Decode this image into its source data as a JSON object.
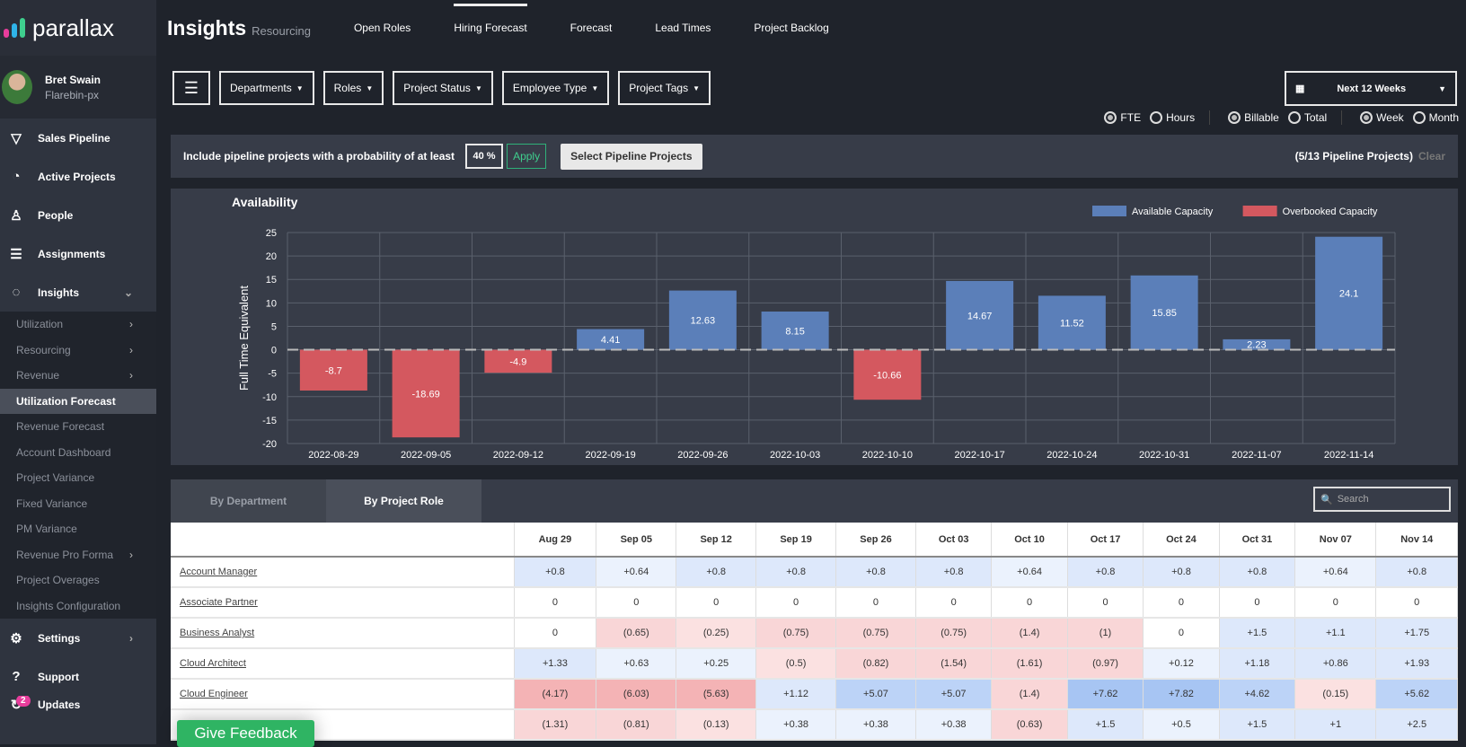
{
  "app": {
    "logo": "parallax"
  },
  "user": {
    "name": "Bret Swain",
    "org": "Flarebin-px"
  },
  "sidebar": {
    "items": [
      {
        "label": "Sales Pipeline",
        "icon": "funnel-icon"
      },
      {
        "label": "Active Projects",
        "icon": "pie-icon"
      },
      {
        "label": "People",
        "icon": "person-icon"
      },
      {
        "label": "Assignments",
        "icon": "bars-icon"
      },
      {
        "label": "Insights",
        "icon": "circle-icon"
      }
    ],
    "sub": [
      {
        "label": "Utilization",
        "chev": true
      },
      {
        "label": "Resourcing",
        "chev": true
      },
      {
        "label": "Revenue",
        "chev": true
      },
      {
        "label": "Utilization Forecast",
        "active": true
      },
      {
        "label": "Revenue Forecast"
      },
      {
        "label": "Account Dashboard"
      },
      {
        "label": "Project Variance"
      },
      {
        "label": "Fixed Variance"
      },
      {
        "label": "PM Variance"
      },
      {
        "label": "Revenue Pro Forma",
        "chev": true
      },
      {
        "label": "Project Overages"
      },
      {
        "label": "Insights Configuration"
      }
    ],
    "bottom": [
      {
        "label": "Settings"
      },
      {
        "label": "Support"
      },
      {
        "label": "Updates",
        "badge": "2"
      }
    ]
  },
  "header": {
    "title": "Insights",
    "subtitle": "Resourcing",
    "tabs": [
      "Open Roles",
      "Hiring Forecast",
      "Forecast",
      "Lead Times",
      "Project Backlog"
    ],
    "active_tab": "Hiring Forecast"
  },
  "filters": [
    "Departments",
    "Roles",
    "Project Status",
    "Employee Type",
    "Project Tags"
  ],
  "date_range": "Next 12 Weeks",
  "radios": [
    {
      "label": "FTE",
      "on": true
    },
    {
      "label": "Hours",
      "on": false
    },
    {
      "label": "Billable",
      "on": true
    },
    {
      "label": "Total",
      "on": false
    },
    {
      "label": "Week",
      "on": true
    },
    {
      "label": "Month",
      "on": false
    }
  ],
  "pipeline": {
    "text": "Include pipeline projects with a probability of at least",
    "value": "40 %",
    "apply": "Apply",
    "select": "Select Pipeline Projects",
    "count": "(5/13 Pipeline Projects)",
    "clear": "Clear"
  },
  "chart_data": {
    "type": "bar",
    "title": "Availability",
    "ylabel": "Full Time Equivalent",
    "ylim": [
      -20,
      25
    ],
    "yticks": [
      25,
      20,
      15,
      10,
      5,
      0,
      -5,
      -10,
      -15,
      -20
    ],
    "grid": true,
    "legend_position": "top-right",
    "categories": [
      "2022-08-29",
      "2022-09-05",
      "2022-09-12",
      "2022-09-19",
      "2022-09-26",
      "2022-10-03",
      "2022-10-10",
      "2022-10-17",
      "2022-10-24",
      "2022-10-31",
      "2022-11-07",
      "2022-11-14"
    ],
    "values": [
      -8.7,
      -18.69,
      -4.9,
      4.41,
      12.63,
      8.15,
      -10.66,
      14.67,
      11.52,
      15.85,
      2.23,
      24.1
    ],
    "series": [
      {
        "name": "Available Capacity",
        "color": "#5b7fb9"
      },
      {
        "name": "Overbooked Capacity",
        "color": "#d4585f"
      }
    ]
  },
  "table": {
    "tabs": [
      "By Department",
      "By Project Role"
    ],
    "active_tab": "By Project Role",
    "search_placeholder": "Search",
    "columns": [
      "Aug 29",
      "Sep 05",
      "Sep 12",
      "Sep 19",
      "Sep 26",
      "Oct 03",
      "Oct 10",
      "Oct 17",
      "Oct 24",
      "Oct 31",
      "Nov 07",
      "Nov 14"
    ],
    "rows": [
      {
        "role": "Account Manager",
        "values": [
          "+0.8",
          "+0.64",
          "+0.8",
          "+0.8",
          "+0.8",
          "+0.8",
          "+0.64",
          "+0.8",
          "+0.8",
          "+0.8",
          "+0.64",
          "+0.8"
        ]
      },
      {
        "role": "Associate Partner",
        "values": [
          "0",
          "0",
          "0",
          "0",
          "0",
          "0",
          "0",
          "0",
          "0",
          "0",
          "0",
          "0"
        ]
      },
      {
        "role": "Business Analyst",
        "values": [
          "0",
          "(0.65)",
          "(0.25)",
          "(0.75)",
          "(0.75)",
          "(0.75)",
          "(1.4)",
          "(1)",
          "0",
          "+1.5",
          "+1.1",
          "+1.75"
        ]
      },
      {
        "role": "Cloud Architect",
        "values": [
          "+1.33",
          "+0.63",
          "+0.25",
          "(0.5)",
          "(0.82)",
          "(1.54)",
          "(1.61)",
          "(0.97)",
          "+0.12",
          "+1.18",
          "+0.86",
          "+1.93"
        ]
      },
      {
        "role": "Cloud Engineer",
        "values": [
          "(4.17)",
          "(6.03)",
          "(5.63)",
          "+1.12",
          "+5.07",
          "+5.07",
          "(1.4)",
          "+7.62",
          "+7.82",
          "+4.62",
          "(0.15)",
          "+5.62"
        ]
      },
      {
        "role": "",
        "values": [
          "(1.31)",
          "(0.81)",
          "(0.13)",
          "+0.38",
          "+0.38",
          "+0.38",
          "(0.63)",
          "+1.5",
          "+0.5",
          "+1.5",
          "+1",
          "+2.5"
        ]
      }
    ]
  },
  "feedback": "Give Feedback"
}
